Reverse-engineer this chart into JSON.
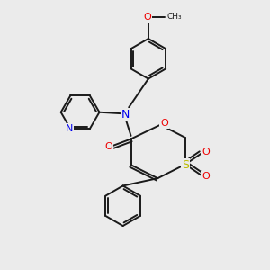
{
  "bg_color": "#ebebeb",
  "bond_color": "#1a1a1a",
  "N_color": "#0000ee",
  "O_color": "#ee0000",
  "S_color": "#bbbb00",
  "text_color": "#1a1a1a",
  "figsize": [
    3.0,
    3.0
  ],
  "dpi": 100,
  "xlim": [
    0,
    10
  ],
  "ylim": [
    0,
    10
  ]
}
